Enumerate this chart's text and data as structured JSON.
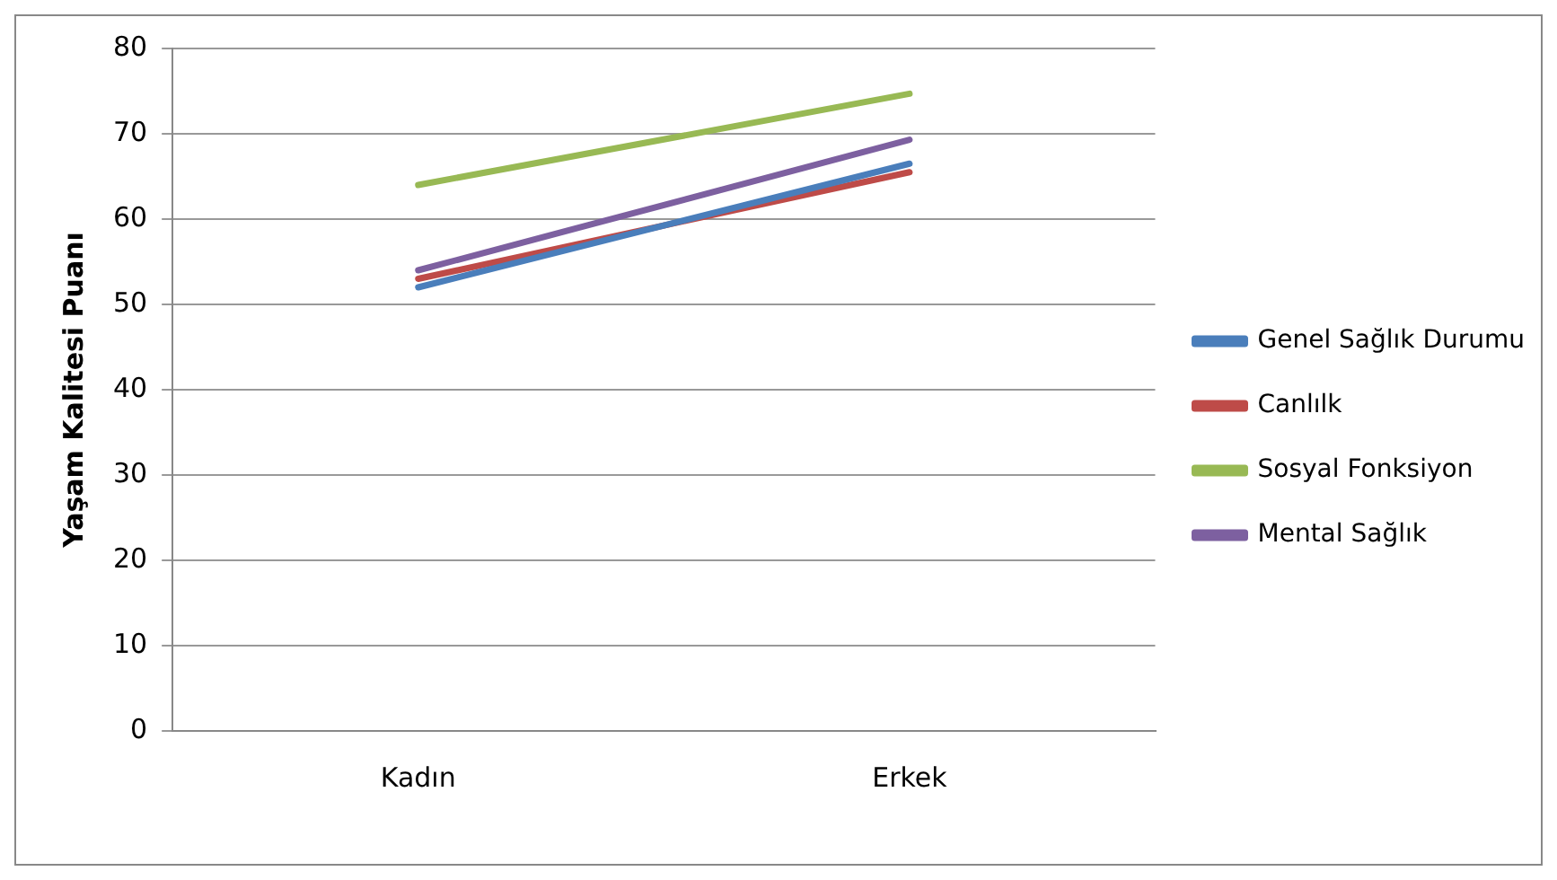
{
  "chart_data": {
    "type": "line",
    "ylabel": "Yaşam Kalitesi Puanı",
    "categories": [
      "Kadın",
      "Erkek"
    ],
    "series": [
      {
        "name": "Genel Sağlık Durumu",
        "color": "#4a7ebb",
        "values": [
          52,
          66.5
        ]
      },
      {
        "name": "Canlılk",
        "color": "#be4b48",
        "values": [
          53,
          65.5
        ]
      },
      {
        "name": "Sosyal Fonksiyon",
        "color": "#98b954",
        "values": [
          64,
          74.7
        ]
      },
      {
        "name": "Mental Sağlık",
        "color": "#7d60a0",
        "values": [
          54,
          69.3
        ]
      }
    ],
    "ylim": [
      0,
      80
    ],
    "yticks": [
      0,
      10,
      20,
      30,
      40,
      50,
      60,
      70,
      80
    ],
    "grid": "y",
    "legend": "right",
    "marker": "none",
    "line_style": "solid"
  }
}
